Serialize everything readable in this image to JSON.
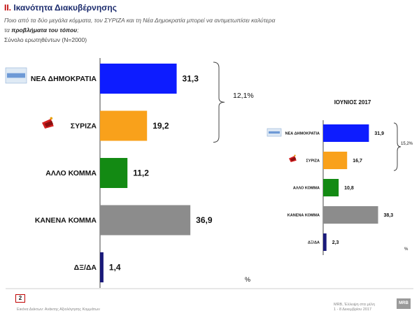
{
  "header": {
    "section_number": "ΙΙ.",
    "title": "Ικανότητα Διακυβέρνησης",
    "question_line1": "Ποιο από τα δύο μεγάλα κόμματα, τον ΣΥΡΙΖΑ και τη Νέα Δημοκρατία μπορεί να αντιμετωπίσει καλύτερα",
    "question_line2_prefix": "τα ",
    "question_line2_bold": "προβλήματα του τόπου",
    "question_line2_suffix": ";",
    "base": "Σύνολο ερωτηθέντων (N=2000)"
  },
  "chart_data": [
    {
      "type": "bar",
      "orientation": "horizontal",
      "categories": [
        "ΝΕΑ ΔΗΜΟΚΡΑΤΙΑ",
        "ΣΥΡΙΖΑ",
        "ΑΛΛΟ ΚΟΜΜΑ",
        "ΚΑΝΕΝΑ ΚΟΜΜΑ",
        "ΔΞ/ΔΑ"
      ],
      "values": [
        31.3,
        19.2,
        11.2,
        36.9,
        1.4
      ],
      "value_labels": [
        "31,3",
        "19,2",
        "11,2",
        "36,9",
        "1,4"
      ],
      "colors": [
        "#0d1cff",
        "#f9a11b",
        "#138a13",
        "#8c8c8c",
        "#1a1a7a"
      ],
      "annotation": "12,1%",
      "unit_label": "%",
      "grid": false,
      "xlim": [
        0,
        40
      ]
    },
    {
      "type": "bar",
      "orientation": "horizontal",
      "title": "ΙΟΥΝΙΟΣ 2017",
      "categories": [
        "ΝΕΑ ΔΗΜΟΚΡΑΤΙΑ",
        "ΣΥΡΙΖΑ",
        "ΑΛΛΟ ΚΟΜΜΑ",
        "ΚΑΝΕΝΑ ΚΟΜΜΑ",
        "ΔΞ/ΔΑ"
      ],
      "values": [
        31.9,
        16.7,
        10.8,
        38.3,
        2.3
      ],
      "value_labels": [
        "31,9",
        "16,7",
        "10,8",
        "38,3",
        "2,3"
      ],
      "colors": [
        "#0d1cff",
        "#f9a11b",
        "#138a13",
        "#8c8c8c",
        "#1a1a7a"
      ],
      "annotation": "15,2%",
      "unit_label": "%",
      "grid": false,
      "xlim": [
        0,
        40
      ]
    }
  ],
  "party_logos": [
    "nd-logo",
    "syriza-logo"
  ],
  "footer": {
    "page_number": "2",
    "note": "Εικόνα Δείκτων: Ανάκτης Αξιολόγησης Κομμάτων",
    "source_line1": "MRB, Έλλειψη στα μέλη",
    "source_line2": "1 - 8 Δεκεμβρίου 2017",
    "logo_text": "MRB"
  }
}
